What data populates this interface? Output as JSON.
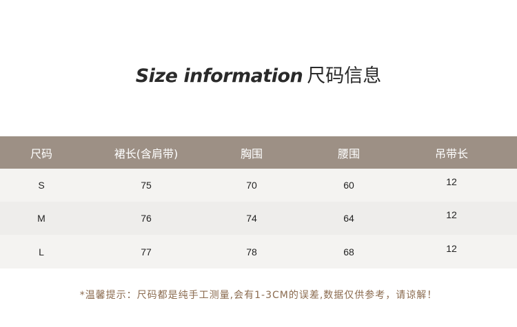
{
  "title": {
    "en": "Size information",
    "zh": "尺码信息"
  },
  "table": {
    "headers": [
      "尺码",
      "裙长(含肩带)",
      "胸围",
      "腰围",
      "吊带长"
    ],
    "rows": [
      [
        "S",
        "75",
        "70",
        "60",
        "12"
      ],
      [
        "M",
        "76",
        "74",
        "64",
        "12"
      ],
      [
        "L",
        "77",
        "78",
        "68",
        "12"
      ]
    ]
  },
  "note": "*温馨提示：尺码都是纯手工测量,会有1-3CM的误差,数据仅供参考，请谅解！",
  "colors": {
    "header_bg": "#9d9085",
    "row_light": "#f4f3f1",
    "row_dark": "#eeedeb",
    "note_text": "#8a6a4e"
  }
}
